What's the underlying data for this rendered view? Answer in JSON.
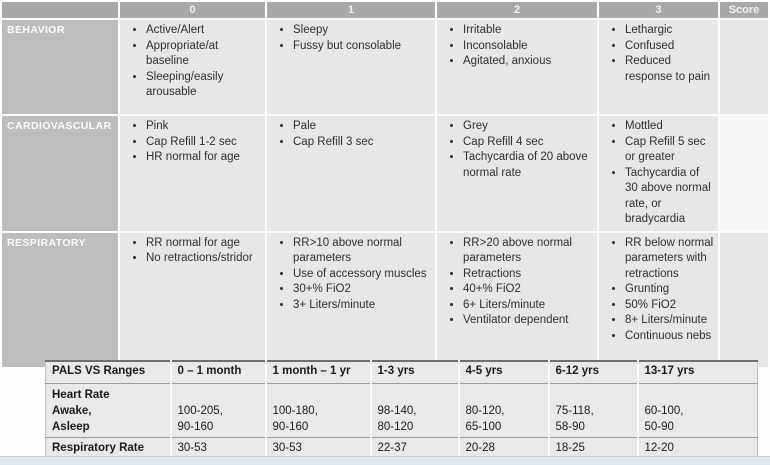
{
  "colors": {
    "header_bg": "#a8a8a8",
    "category_bg": "#bdbdbd",
    "cell_bg": "#e7e7e7",
    "score_highlight": "#f8f8f8",
    "pals_bg": "#e9e9e9",
    "bottom_bar": "#dfe6ec",
    "header_text": "#f1f1f1",
    "body_text": "#2e2e2e"
  },
  "pews": {
    "column_headers": [
      "",
      "0",
      "1",
      "2",
      "3",
      "Score"
    ],
    "rows": [
      {
        "category": "BEHAVIOR",
        "scores": [
          [
            "Active/Alert",
            "Appropriate/at baseline",
            "Sleeping/easily arousable"
          ],
          [
            "Sleepy",
            "Fussy but consolable"
          ],
          [
            "Irritable",
            "Inconsolable",
            "Agitated, anxious"
          ],
          [
            "Lethargic",
            "Confused",
            "Reduced response to pain"
          ]
        ],
        "score_value": ""
      },
      {
        "category": "CARDIOVASCULAR",
        "scores": [
          [
            "Pink",
            "Cap Refill 1-2 sec",
            "HR normal for age"
          ],
          [
            "Pale",
            "Cap Refill 3 sec"
          ],
          [
            "Grey",
            "Cap Refill 4 sec",
            "Tachycardia of 20 above normal rate"
          ],
          [
            "Mottled",
            "Cap Refill 5 sec or greater",
            "Tachycardia of 30 above normal rate, or bradycardia"
          ]
        ],
        "score_value": ""
      },
      {
        "category": "RESPIRATORY",
        "scores": [
          [
            "RR normal for age",
            "No retractions/stridor"
          ],
          [
            "RR>10 above normal parameters",
            "Use of accessory muscles",
            "30+% FiO2",
            "3+ Liters/minute"
          ],
          [
            "RR>20 above normal parameters",
            "Retractions",
            "40+% FiO2",
            "6+ Liters/minute",
            "Ventilator dependent"
          ],
          [
            "RR below normal parameters with retractions",
            "Grunting",
            "50% FiO2",
            "8+ Liters/minute",
            "Continuous nebs"
          ]
        ],
        "score_value": ""
      }
    ]
  },
  "pals": {
    "headers": [
      "PALS VS Ranges",
      "0 – 1 month",
      "1 month – 1 yr",
      "1-3 yrs",
      "4-5 yrs",
      "6-12 yrs",
      "13-17 yrs"
    ],
    "heart_rate": {
      "label": "Heart Rate\nAwake,\nAsleep",
      "values": [
        "\n100-205,\n90-160",
        "\n100-180,\n90-160",
        "\n98-140,\n80-120",
        "\n80-120,\n65-100",
        "\n75-118,\n58-90",
        "\n60-100,\n50-90"
      ]
    },
    "respiratory_rate": {
      "label": "Respiratory Rate",
      "values": [
        "30-53",
        "30-53",
        "22-37",
        "20-28",
        "18-25",
        "12-20"
      ]
    }
  }
}
